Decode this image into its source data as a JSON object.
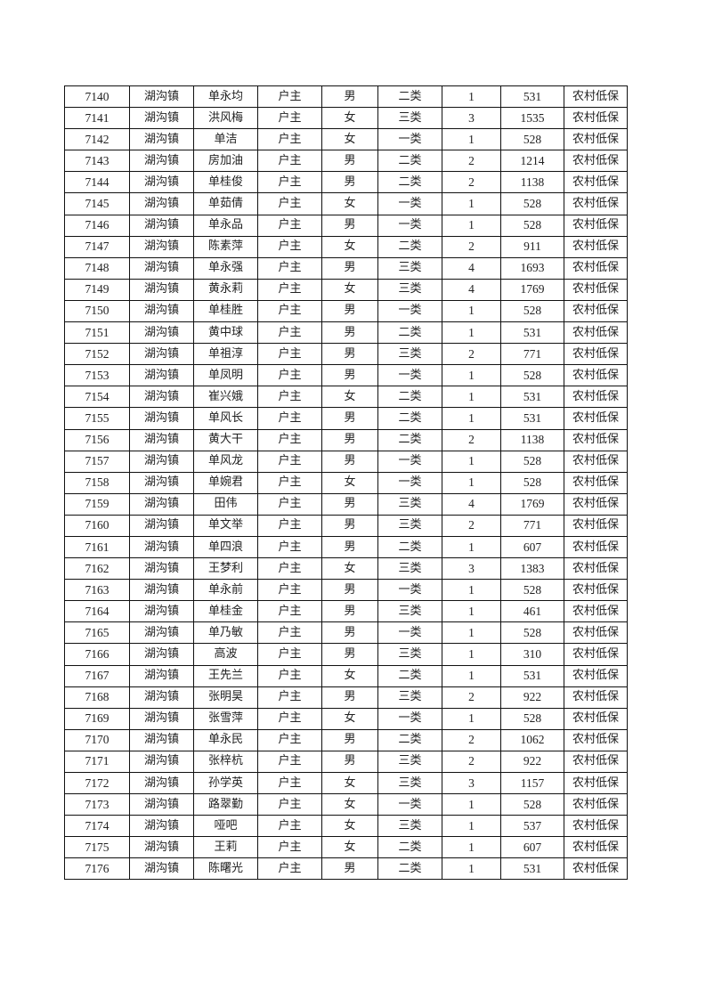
{
  "table": {
    "rows": [
      [
        "7140",
        "湖沟镇",
        "单永均",
        "户主",
        "男",
        "二类",
        "1",
        "531",
        "农村低保"
      ],
      [
        "7141",
        "湖沟镇",
        "洪风梅",
        "户主",
        "女",
        "三类",
        "3",
        "1535",
        "农村低保"
      ],
      [
        "7142",
        "湖沟镇",
        "单洁",
        "户主",
        "女",
        "一类",
        "1",
        "528",
        "农村低保"
      ],
      [
        "7143",
        "湖沟镇",
        "房加油",
        "户主",
        "男",
        "二类",
        "2",
        "1214",
        "农村低保"
      ],
      [
        "7144",
        "湖沟镇",
        "单桂俊",
        "户主",
        "男",
        "二类",
        "2",
        "1138",
        "农村低保"
      ],
      [
        "7145",
        "湖沟镇",
        "单茹倩",
        "户主",
        "女",
        "一类",
        "1",
        "528",
        "农村低保"
      ],
      [
        "7146",
        "湖沟镇",
        "单永品",
        "户主",
        "男",
        "一类",
        "1",
        "528",
        "农村低保"
      ],
      [
        "7147",
        "湖沟镇",
        "陈素萍",
        "户主",
        "女",
        "二类",
        "2",
        "911",
        "农村低保"
      ],
      [
        "7148",
        "湖沟镇",
        "单永强",
        "户主",
        "男",
        "三类",
        "4",
        "1693",
        "农村低保"
      ],
      [
        "7149",
        "湖沟镇",
        "黄永莉",
        "户主",
        "女",
        "三类",
        "4",
        "1769",
        "农村低保"
      ],
      [
        "7150",
        "湖沟镇",
        "单桂胜",
        "户主",
        "男",
        "一类",
        "1",
        "528",
        "农村低保"
      ],
      [
        "7151",
        "湖沟镇",
        "黄中球",
        "户主",
        "男",
        "二类",
        "1",
        "531",
        "农村低保"
      ],
      [
        "7152",
        "湖沟镇",
        "单祖淳",
        "户主",
        "男",
        "三类",
        "2",
        "771",
        "农村低保"
      ],
      [
        "7153",
        "湖沟镇",
        "单凤明",
        "户主",
        "男",
        "一类",
        "1",
        "528",
        "农村低保"
      ],
      [
        "7154",
        "湖沟镇",
        "崔兴娥",
        "户主",
        "女",
        "二类",
        "1",
        "531",
        "农村低保"
      ],
      [
        "7155",
        "湖沟镇",
        "单风长",
        "户主",
        "男",
        "二类",
        "1",
        "531",
        "农村低保"
      ],
      [
        "7156",
        "湖沟镇",
        "黄大干",
        "户主",
        "男",
        "二类",
        "2",
        "1138",
        "农村低保"
      ],
      [
        "7157",
        "湖沟镇",
        "单风龙",
        "户主",
        "男",
        "一类",
        "1",
        "528",
        "农村低保"
      ],
      [
        "7158",
        "湖沟镇",
        "单婉君",
        "户主",
        "女",
        "一类",
        "1",
        "528",
        "农村低保"
      ],
      [
        "7159",
        "湖沟镇",
        "田伟",
        "户主",
        "男",
        "三类",
        "4",
        "1769",
        "农村低保"
      ],
      [
        "7160",
        "湖沟镇",
        "单文举",
        "户主",
        "男",
        "三类",
        "2",
        "771",
        "农村低保"
      ],
      [
        "7161",
        "湖沟镇",
        "单四浪",
        "户主",
        "男",
        "二类",
        "1",
        "607",
        "农村低保"
      ],
      [
        "7162",
        "湖沟镇",
        "王梦利",
        "户主",
        "女",
        "三类",
        "3",
        "1383",
        "农村低保"
      ],
      [
        "7163",
        "湖沟镇",
        "单永前",
        "户主",
        "男",
        "一类",
        "1",
        "528",
        "农村低保"
      ],
      [
        "7164",
        "湖沟镇",
        "单桂金",
        "户主",
        "男",
        "三类",
        "1",
        "461",
        "农村低保"
      ],
      [
        "7165",
        "湖沟镇",
        "单乃敏",
        "户主",
        "男",
        "一类",
        "1",
        "528",
        "农村低保"
      ],
      [
        "7166",
        "湖沟镇",
        "高波",
        "户主",
        "男",
        "三类",
        "1",
        "310",
        "农村低保"
      ],
      [
        "7167",
        "湖沟镇",
        "王先兰",
        "户主",
        "女",
        "二类",
        "1",
        "531",
        "农村低保"
      ],
      [
        "7168",
        "湖沟镇",
        "张明昊",
        "户主",
        "男",
        "三类",
        "2",
        "922",
        "农村低保"
      ],
      [
        "7169",
        "湖沟镇",
        "张雪萍",
        "户主",
        "女",
        "一类",
        "1",
        "528",
        "农村低保"
      ],
      [
        "7170",
        "湖沟镇",
        "单永民",
        "户主",
        "男",
        "二类",
        "2",
        "1062",
        "农村低保"
      ],
      [
        "7171",
        "湖沟镇",
        "张梓杭",
        "户主",
        "男",
        "三类",
        "2",
        "922",
        "农村低保"
      ],
      [
        "7172",
        "湖沟镇",
        "孙学英",
        "户主",
        "女",
        "三类",
        "3",
        "1157",
        "农村低保"
      ],
      [
        "7173",
        "湖沟镇",
        "路翠勤",
        "户主",
        "女",
        "一类",
        "1",
        "528",
        "农村低保"
      ],
      [
        "7174",
        "湖沟镇",
        "哑吧",
        "户主",
        "女",
        "三类",
        "1",
        "537",
        "农村低保"
      ],
      [
        "7175",
        "湖沟镇",
        "王莉",
        "户主",
        "女",
        "二类",
        "1",
        "607",
        "农村低保"
      ],
      [
        "7176",
        "湖沟镇",
        "陈曙光",
        "户主",
        "男",
        "二类",
        "1",
        "531",
        "农村低保"
      ]
    ]
  }
}
